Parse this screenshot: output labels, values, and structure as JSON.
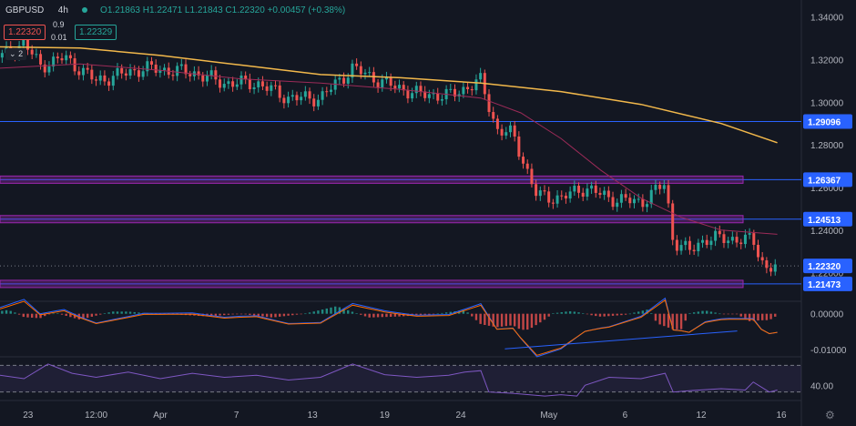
{
  "header": {
    "symbol": "GBPUSD",
    "interval": "4h",
    "open": "O1.21863",
    "high": "H1.22471",
    "low": "L1.21843",
    "close": "C1.22320",
    "change": "+0.00457 (+0.38%)",
    "sell_price": "1.22320",
    "buy_price": "1.22329",
    "qty_top": "0.9",
    "qty_bottom": "0.01",
    "indicator_count": "2"
  },
  "colors": {
    "background": "#131722",
    "up": "#26a69a",
    "down": "#ef5350",
    "ma_long": "#f2b84b",
    "ma_short": "#9c2b58",
    "hline": "#2962ff",
    "zone": "#9c27b0",
    "rsi": "#7e57c2",
    "macd": "#2962ff",
    "signal": "#ff6d00"
  },
  "chart_data": {
    "type": "candlestick",
    "price_axis": {
      "ticks": [
        "1.34000",
        "1.32000",
        "1.30000",
        "1.28000",
        "1.26000",
        "1.24000",
        "1.22000"
      ],
      "range": [
        1.207,
        1.348
      ]
    },
    "time_axis": {
      "labels": [
        "23",
        "12:00",
        "Apr",
        "7",
        "13",
        "19",
        "24",
        "May",
        "6",
        "12",
        "16"
      ],
      "range": [
        0,
        100
      ]
    },
    "key_levels": [
      {
        "label": "1.29096",
        "value": 1.29096,
        "zone": false
      },
      {
        "label": "1.26367",
        "value": 1.26367,
        "zone": true
      },
      {
        "label": "1.24513",
        "value": 1.24513,
        "zone": true
      },
      {
        "label": "1.22320",
        "value": 1.2232,
        "zone": false,
        "current": true
      },
      {
        "label": "1.21473",
        "value": 1.21473,
        "zone": true
      }
    ],
    "ma_long": [
      [
        0,
        1.326
      ],
      [
        10,
        1.3255
      ],
      [
        20,
        1.322
      ],
      [
        30,
        1.3175
      ],
      [
        40,
        1.313
      ],
      [
        50,
        1.3115
      ],
      [
        60,
        1.309
      ],
      [
        70,
        1.305
      ],
      [
        80,
        1.299
      ],
      [
        90,
        1.29
      ],
      [
        97,
        1.281
      ]
    ],
    "ma_short": [
      [
        0,
        1.316
      ],
      [
        10,
        1.318
      ],
      [
        20,
        1.315
      ],
      [
        30,
        1.311
      ],
      [
        40,
        1.309
      ],
      [
        50,
        1.306
      ],
      [
        60,
        1.302
      ],
      [
        65,
        1.295
      ],
      [
        70,
        1.283
      ],
      [
        75,
        1.268
      ],
      [
        80,
        1.255
      ],
      [
        85,
        1.246
      ],
      [
        90,
        1.24
      ],
      [
        97,
        1.238
      ]
    ],
    "price_path": [
      [
        0,
        1.321
      ],
      [
        3,
        1.328
      ],
      [
        5,
        1.317
      ],
      [
        8,
        1.321
      ],
      [
        12,
        1.31
      ],
      [
        18,
        1.316
      ],
      [
        24,
        1.314
      ],
      [
        28,
        1.309
      ],
      [
        32,
        1.309
      ],
      [
        36,
        1.302
      ],
      [
        40,
        1.302
      ],
      [
        44,
        1.316
      ],
      [
        48,
        1.309
      ],
      [
        52,
        1.304
      ],
      [
        56,
        1.303
      ],
      [
        60,
        1.31
      ],
      [
        62,
        1.287
      ],
      [
        64,
        1.285
      ],
      [
        67,
        1.256
      ],
      [
        70,
        1.255
      ],
      [
        73,
        1.26
      ],
      [
        76,
        1.255
      ],
      [
        80,
        1.253
      ],
      [
        83,
        1.262
      ],
      [
        84,
        1.235
      ],
      [
        86,
        1.23
      ],
      [
        88,
        1.236
      ],
      [
        91,
        1.236
      ],
      [
        94,
        1.235
      ],
      [
        95.5,
        1.222
      ],
      [
        97,
        1.2232
      ]
    ],
    "macd": {
      "ticks": [
        "0.00000",
        "-0.01000"
      ],
      "range": [
        -0.0115,
        0.0022
      ]
    },
    "rsi": {
      "ticks": [
        "40.00"
      ],
      "range": [
        20,
        80
      ],
      "band": [
        30,
        70
      ],
      "path": [
        [
          0,
          55
        ],
        [
          3,
          50
        ],
        [
          6,
          72
        ],
        [
          9,
          58
        ],
        [
          12,
          52
        ],
        [
          16,
          60
        ],
        [
          20,
          50
        ],
        [
          24,
          58
        ],
        [
          28,
          52
        ],
        [
          32,
          55
        ],
        [
          36,
          48
        ],
        [
          40,
          52
        ],
        [
          44,
          72
        ],
        [
          48,
          56
        ],
        [
          52,
          52
        ],
        [
          56,
          55
        ],
        [
          58,
          60
        ],
        [
          60,
          62
        ],
        [
          61,
          30
        ],
        [
          64,
          28
        ],
        [
          68,
          24
        ],
        [
          70,
          26
        ],
        [
          72,
          24
        ],
        [
          73,
          40
        ],
        [
          76,
          52
        ],
        [
          80,
          50
        ],
        [
          83,
          58
        ],
        [
          84,
          30
        ],
        [
          86,
          32
        ],
        [
          90,
          35
        ],
        [
          93,
          33
        ],
        [
          94,
          45
        ],
        [
          96,
          30
        ],
        [
          97,
          33
        ]
      ]
    }
  }
}
